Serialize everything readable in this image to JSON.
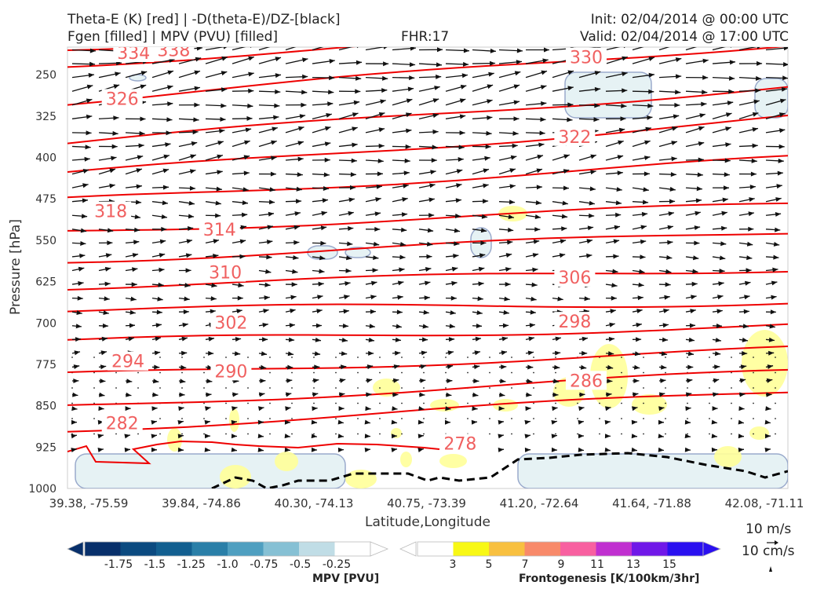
{
  "header": {
    "title_line1": "Theta-E (K) [red] | -D(theta-E)/DZ-[black]",
    "title_line2": "Fgen [filled] | MPV (PVU) [filled]",
    "fhr": "FHR:17",
    "init": "Init: 02/04/2014 @ 00:00 UTC",
    "valid": "Valid: 02/04/2014 @ 17:00 UTC"
  },
  "reference_vectors": {
    "horizontal": "10 m/s",
    "vertical": "10 cm/s"
  },
  "colors": {
    "theta_e": "#ee0000",
    "contour_label": "#f06060",
    "frontogenesis_low": "#ffff99",
    "mpv_fill": "#e6f2f4",
    "mpv_outline": "#9aaacc",
    "barb": "#111111"
  },
  "chart_data": {
    "type": "cross-section",
    "xlabel": "Latitude,Longitude",
    "ylabel": "Pressure [hPa]",
    "x_ticks": [
      "39.38, -75.59",
      "39.84, -74.86",
      "40.30, -74.13",
      "40.75, -73.39",
      "41.20, -72.64",
      "41.64, -71.88",
      "42.08, -71.11"
    ],
    "y_ticks": [
      250,
      325,
      400,
      475,
      550,
      625,
      700,
      775,
      850,
      925,
      1000
    ],
    "ylim": [
      1000,
      200
    ],
    "theta_e_contour_labels": [
      {
        "value": "334",
        "x_index": 0.55,
        "p": 210
      },
      {
        "value": "338",
        "x_index": 0.9,
        "p": 205
      },
      {
        "value": "330",
        "x_index": 4.5,
        "p": 218
      },
      {
        "value": "326",
        "x_index": 0.45,
        "p": 293
      },
      {
        "value": "322",
        "x_index": 4.4,
        "p": 362
      },
      {
        "value": "318",
        "x_index": 0.35,
        "p": 497
      },
      {
        "value": "314",
        "x_index": 1.3,
        "p": 530
      },
      {
        "value": "310",
        "x_index": 1.35,
        "p": 608
      },
      {
        "value": "306",
        "x_index": 4.4,
        "p": 617
      },
      {
        "value": "302",
        "x_index": 1.4,
        "p": 699
      },
      {
        "value": "298",
        "x_index": 4.4,
        "p": 697
      },
      {
        "value": "294",
        "x_index": 0.5,
        "p": 769
      },
      {
        "value": "290",
        "x_index": 1.4,
        "p": 787
      },
      {
        "value": "286",
        "x_index": 4.5,
        "p": 804
      },
      {
        "value": "282",
        "x_index": 0.45,
        "p": 881
      },
      {
        "value": "278",
        "x_index": 3.4,
        "p": 918
      }
    ],
    "mpv_colorbar": {
      "title": "MPV [PVU]",
      "ticks": [
        "-1.75",
        "-1.5",
        "-1.25",
        "-1.0",
        "-0.75",
        "-0.5",
        "-0.25"
      ],
      "colors": [
        "#08306b",
        "#0b4a80",
        "#125f90",
        "#2a7fa8",
        "#4f9fc0",
        "#86c0d4",
        "#c0dde6",
        "#ffffff"
      ]
    },
    "fgen_colorbar": {
      "title": "Frontogenesis [K/100km/3hr]",
      "ticks": [
        "3",
        "5",
        "7",
        "9",
        "11",
        "13",
        "15"
      ],
      "colors": [
        "#ffffff",
        "#f8f815",
        "#f8c040",
        "#f88a6a",
        "#f860a0",
        "#c030d0",
        "#7018e8",
        "#2a10f0"
      ]
    }
  }
}
